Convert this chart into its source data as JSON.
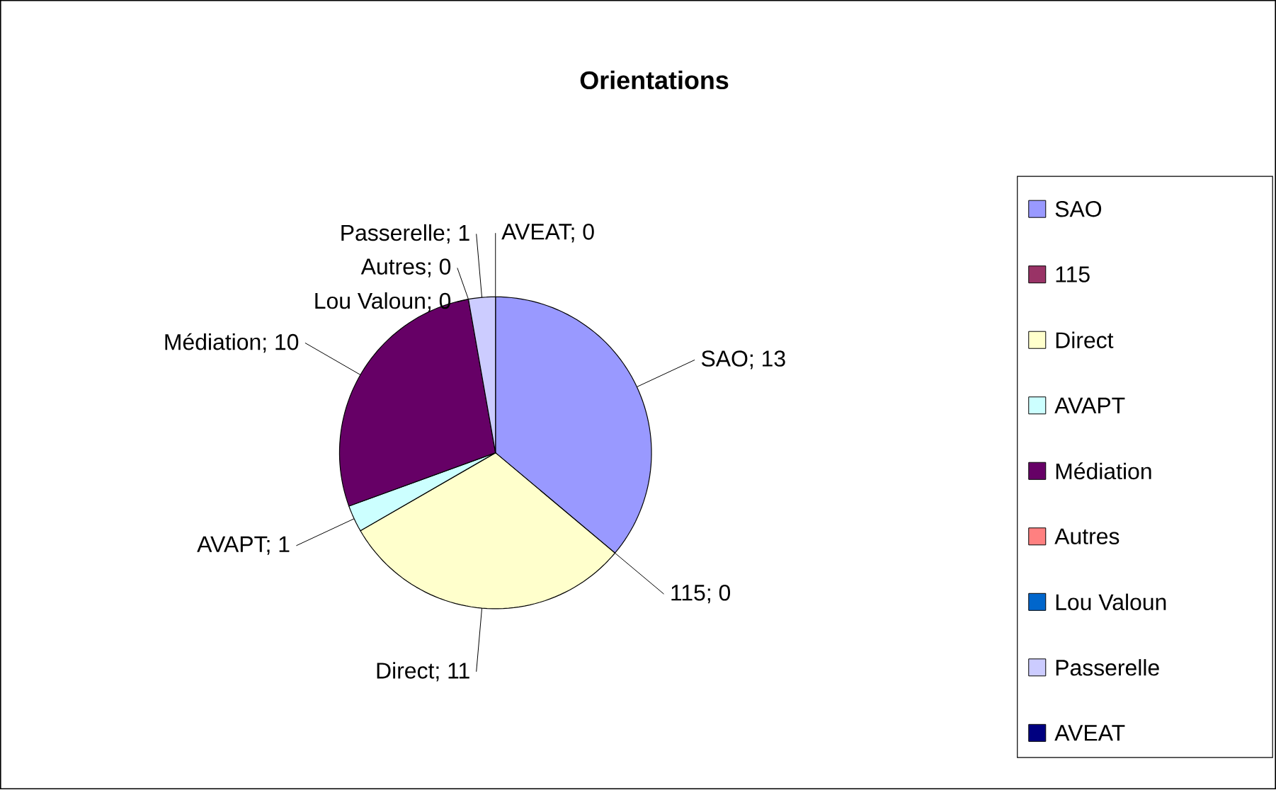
{
  "chart_data": {
    "type": "pie",
    "title": "Orientations",
    "categories": [
      "SAO",
      "115",
      "Direct",
      "AVAPT",
      "Médiation",
      "Autres",
      "Lou Valoun",
      "Passerelle",
      "AVEAT"
    ],
    "values": [
      13,
      0,
      11,
      1,
      10,
      0,
      0,
      1,
      0
    ],
    "colors": [
      "#9999ff",
      "#993366",
      "#ffffcc",
      "#ccffff",
      "#660066",
      "#ff8080",
      "#0066cc",
      "#ccccff",
      "#000080"
    ],
    "value_labels": [
      "SAO; 13",
      "115; 0",
      "Direct; 11",
      "AVAPT; 1",
      "Médiation; 10",
      "Autres; 0",
      "Lou Valoun; 0",
      "Passerelle; 1",
      "AVEAT; 0"
    ],
    "legend": "right"
  }
}
